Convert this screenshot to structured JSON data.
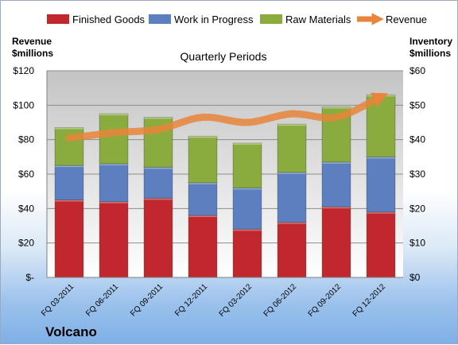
{
  "chart_data": {
    "type": "bar",
    "stacked": true,
    "title": "Quarterly Periods",
    "company": "Volcano",
    "categories": [
      "FQ 03-2011",
      "FQ 06-2011",
      "FQ 09-2011",
      "FQ 12-2011",
      "FQ 03-2012",
      "FQ 06-2012",
      "FQ 09-2012",
      "FQ 12-2012"
    ],
    "series": [
      {
        "name": "Finished Goods",
        "axis": "left",
        "color": "#c0282d",
        "values": [
          45,
          44,
          46,
          36,
          28,
          32,
          41,
          38
        ]
      },
      {
        "name": "Work in Progress",
        "axis": "left",
        "color": "#5b7fbf",
        "values": [
          20,
          22,
          18,
          19,
          24,
          29,
          26,
          32
        ]
      },
      {
        "name": "Raw Materials",
        "axis": "left",
        "color": "#8aac3e",
        "values": [
          22,
          29,
          29,
          27,
          26,
          28,
          32,
          36
        ]
      },
      {
        "name": "Revenue",
        "type": "line",
        "axis": "right",
        "color": "#e8853a",
        "values": [
          40.5,
          42,
          43,
          46.5,
          45,
          47.5,
          46.5,
          52.5
        ]
      }
    ],
    "y_left": {
      "label": "Revenue\n$millions",
      "label_lines": [
        "Revenue",
        "$millions"
      ],
      "min": 0,
      "max": 120,
      "step": 20,
      "tick_labels": [
        "$-",
        "$20",
        "$40",
        "$60",
        "$80",
        "$100",
        "$120"
      ]
    },
    "y_right": {
      "label": "Inventory\n$millions",
      "label_lines": [
        "Inventory",
        "$millions"
      ],
      "min": 0,
      "max": 60,
      "step": 10,
      "tick_labels": [
        "$0",
        "$10",
        "$20",
        "$30",
        "$40",
        "$50",
        "$60"
      ]
    },
    "grid": true,
    "legend_position": "top"
  }
}
